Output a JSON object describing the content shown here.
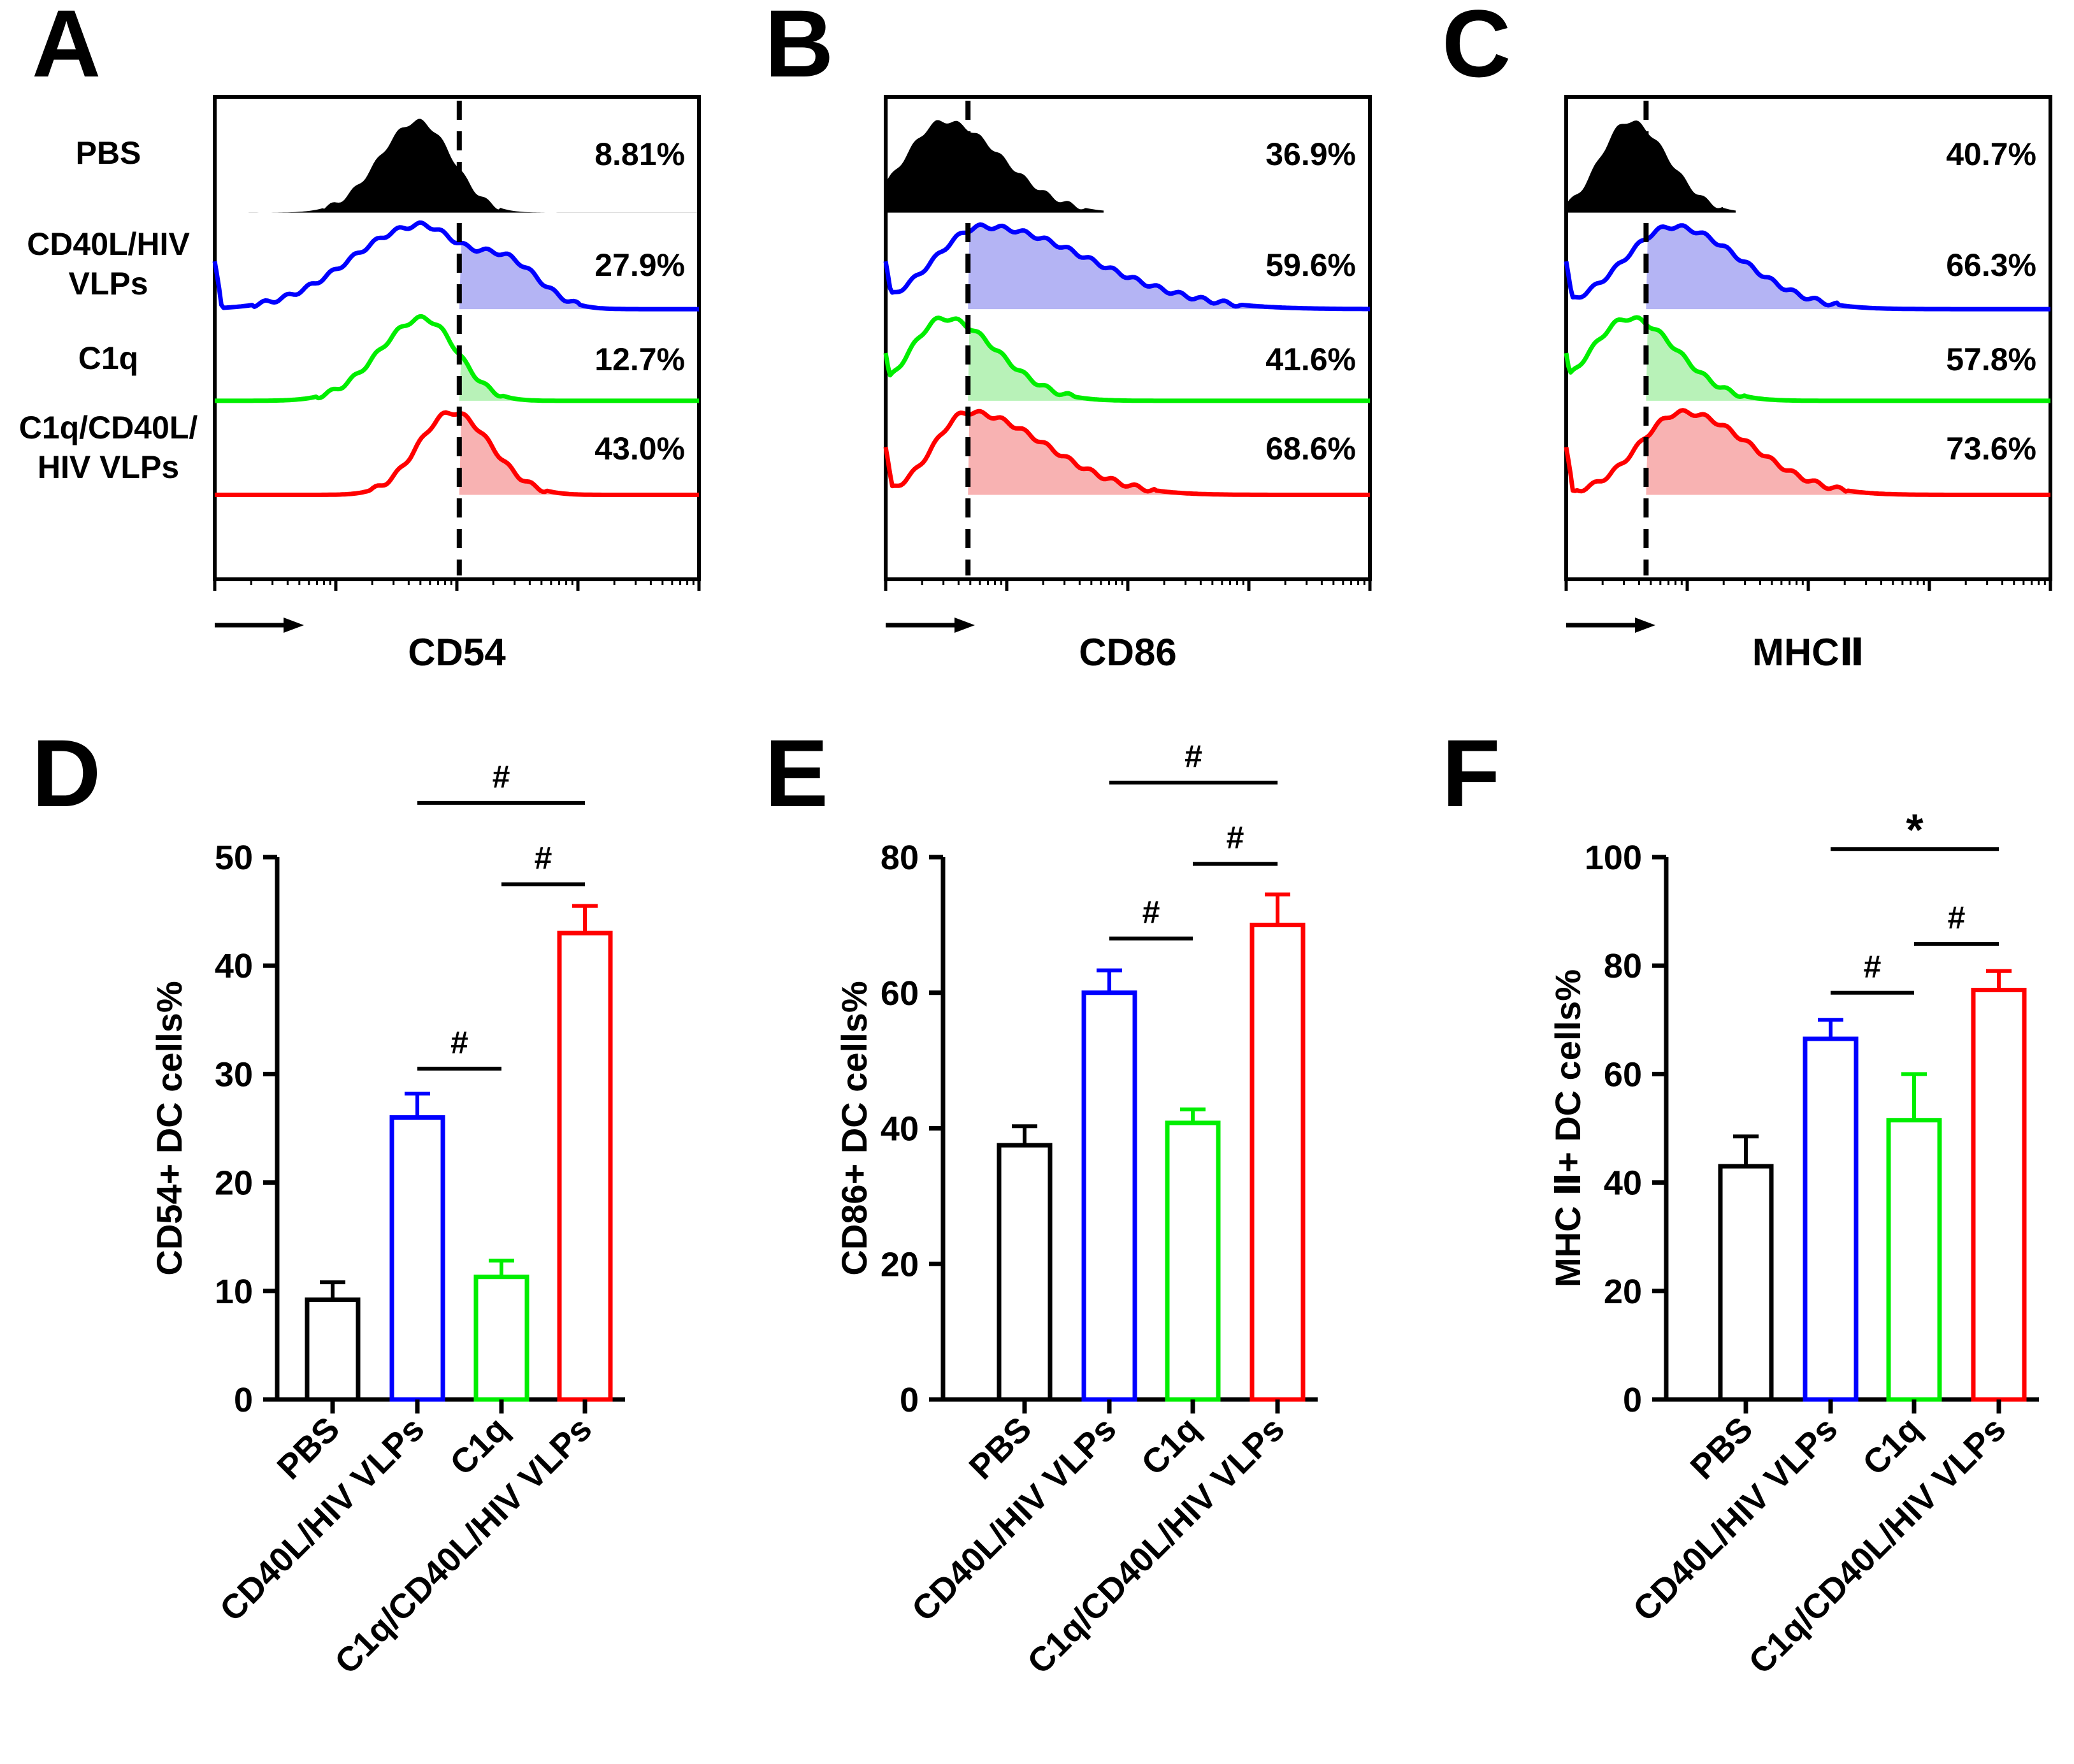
{
  "figure": {
    "colors": {
      "PBS": "#000000",
      "CD40L/HIV VLPs": "#0000ff",
      "C1q": "#00ee00",
      "C1q/CD40L/HIV VLPs": "#ff0000"
    },
    "fills": {
      "CD40L/HIV VLPs": "#b4b4f4",
      "C1q": "#b8f2b8",
      "C1q/CD40L/HIV VLPs": "#f8b2b2"
    }
  },
  "chart_data": [
    {
      "panel": "A",
      "type": "histogram",
      "xlabel": "CD54",
      "gate": 0.505,
      "row_labels": [
        [
          "PBS"
        ],
        [
          "CD40L/HIV",
          "VLPs"
        ],
        [
          "C1q"
        ],
        [
          "C1q/CD40L/",
          "HIV VLPs"
        ]
      ],
      "series": [
        {
          "name": "PBS",
          "percent": "8.81%",
          "start": 0.07,
          "peak": 0.42,
          "sd_left": 0.08,
          "sd_right": 0.07,
          "height": 0.95,
          "filled": true
        },
        {
          "name": "CD40L/HIV VLPs",
          "percent": "27.9%",
          "start": 0.0,
          "peak": 0.42,
          "sd_left": 0.14,
          "sd_right": 0.08,
          "height": 0.95,
          "second_peak": 0.6,
          "second_sd": 0.07,
          "second_height": 0.55,
          "spike": true
        },
        {
          "name": "C1q",
          "percent": "12.7%",
          "start": 0.0,
          "peak": 0.43,
          "sd_left": 0.09,
          "sd_right": 0.07,
          "height": 0.95
        },
        {
          "name": "C1q/CD40L/HIV VLPs",
          "percent": "43.0%",
          "start": 0.0,
          "peak": 0.49,
          "sd_left": 0.07,
          "sd_right": 0.08,
          "height": 0.95
        }
      ]
    },
    {
      "panel": "B",
      "type": "histogram",
      "xlabel": "CD86",
      "gate": 0.17,
      "row_labels": [],
      "series": [
        {
          "name": "PBS",
          "percent": "36.9%",
          "start": 0.0,
          "end": 0.45,
          "peak": 0.12,
          "sd_left": 0.08,
          "sd_right": 0.12,
          "height": 0.95,
          "filled": true
        },
        {
          "name": "CD40L/HIV VLPs",
          "percent": "59.6%",
          "start": 0.0,
          "peak": 0.2,
          "sd_left": 0.1,
          "sd_right": 0.22,
          "height": 0.95,
          "spike": true
        },
        {
          "name": "C1q",
          "percent": "41.6%",
          "start": 0.0,
          "peak": 0.12,
          "sd_left": 0.07,
          "sd_right": 0.11,
          "height": 0.95,
          "spike": true
        },
        {
          "name": "C1q/CD40L/HIV VLPs",
          "percent": "68.6%",
          "start": 0.0,
          "peak": 0.17,
          "sd_left": 0.07,
          "sd_right": 0.16,
          "height": 0.95,
          "spike": true
        }
      ]
    },
    {
      "panel": "C",
      "type": "histogram",
      "xlabel": "MHCⅡ",
      "gate": 0.165,
      "row_labels": [],
      "series": [
        {
          "name": "PBS",
          "percent": "40.7%",
          "start": 0.0,
          "end": 0.35,
          "peak": 0.13,
          "sd_left": 0.06,
          "sd_right": 0.08,
          "height": 0.95,
          "filled": true
        },
        {
          "name": "CD40L/HIV VLPs",
          "percent": "66.3%",
          "start": 0.0,
          "peak": 0.22,
          "sd_left": 0.1,
          "sd_right": 0.14,
          "height": 0.95,
          "spike": true
        },
        {
          "name": "C1q",
          "percent": "57.8%",
          "start": 0.0,
          "peak": 0.13,
          "sd_left": 0.08,
          "sd_right": 0.1,
          "height": 0.95,
          "spike": true
        },
        {
          "name": "C1q/CD40L/HIV VLPs",
          "percent": "73.6%",
          "start": 0.0,
          "peak": 0.24,
          "sd_left": 0.09,
          "sd_right": 0.14,
          "height": 0.95,
          "spike": true
        }
      ]
    },
    {
      "panel": "D",
      "type": "bar",
      "ylabel": "CD54+ DC cells%",
      "categories": [
        "PBS",
        "CD40L/HIV VLPs",
        "C1q",
        "C1q/CD40L/HIV VLPs"
      ],
      "values": [
        9.2,
        26,
        11.3,
        43
      ],
      "errors": [
        1.6,
        2.2,
        1.5,
        2.5
      ],
      "ylim": [
        0,
        50
      ],
      "yticks": [
        0,
        10,
        20,
        30,
        40,
        50
      ],
      "brackets": [
        {
          "from": 1,
          "to": 2,
          "y": 30.5,
          "label": "#"
        },
        {
          "from": 2,
          "to": 3,
          "y": 47.5,
          "label": "#"
        },
        {
          "from": 1,
          "to": 3,
          "y": 55,
          "label": "#"
        }
      ]
    },
    {
      "panel": "E",
      "type": "bar",
      "ylabel": "CD86+ DC cells%",
      "categories": [
        "PBS",
        "CD40L/HIV VLPs",
        "C1q",
        "C1q/CD40L/HIV VLPs"
      ],
      "values": [
        37.5,
        60,
        40.8,
        70
      ],
      "errors": [
        2.8,
        3.3,
        2.0,
        4.5
      ],
      "ylim": [
        0,
        80
      ],
      "yticks": [
        0,
        20,
        40,
        60,
        80
      ],
      "brackets": [
        {
          "from": 1,
          "to": 2,
          "y": 68,
          "label": "#"
        },
        {
          "from": 2,
          "to": 3,
          "y": 79,
          "label": "#"
        },
        {
          "from": 1,
          "to": 3,
          "y": 91,
          "label": "#"
        }
      ]
    },
    {
      "panel": "F",
      "type": "bar",
      "ylabel": "MHC Ⅱ+ DC cells%",
      "categories": [
        "PBS",
        "CD40L/HIV VLPs",
        "C1q",
        "C1q/CD40L/HIV VLPs"
      ],
      "values": [
        43,
        66.5,
        51.5,
        75.5
      ],
      "errors": [
        5.5,
        3.5,
        8.5,
        3.5
      ],
      "ylim": [
        0,
        100
      ],
      "yticks": [
        0,
        20,
        40,
        60,
        80,
        100
      ],
      "brackets": [
        {
          "from": 1,
          "to": 2,
          "y": 75,
          "label": "#"
        },
        {
          "from": 2,
          "to": 3,
          "y": 84,
          "label": "#"
        },
        {
          "from": 1,
          "to": 3,
          "y": 101.5,
          "label": "*"
        }
      ]
    }
  ]
}
